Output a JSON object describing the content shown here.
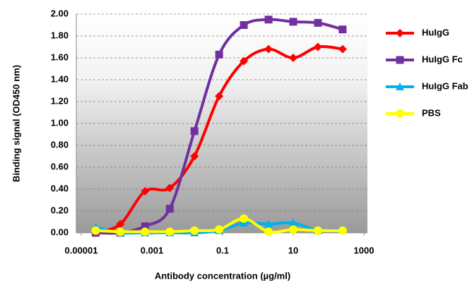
{
  "chart_data": {
    "type": "line",
    "x_label": "Antibody concentration (µg/ml)",
    "y_label": "Binding signal (OD450 nm)",
    "x": [
      2.56e-05,
      0.000128,
      0.00064,
      0.0032,
      0.016,
      0.08,
      0.4,
      2,
      10,
      50,
      250
    ],
    "series": [
      {
        "name": "HuIgG",
        "color": "#ff0000",
        "marker": "diamond",
        "values": [
          0.0,
          0.08,
          0.38,
          0.41,
          0.7,
          1.25,
          1.57,
          1.68,
          1.6,
          1.7,
          1.68
        ]
      },
      {
        "name": "HuIgG Fc",
        "color": "#7030a0",
        "marker": "square",
        "values": [
          0.0,
          0.0,
          0.06,
          0.22,
          0.93,
          1.63,
          1.9,
          1.95,
          1.93,
          1.92,
          1.86
        ]
      },
      {
        "name": "HuIgG Fab",
        "color": "#00b0f0",
        "marker": "triangle",
        "values": [
          0.05,
          0.0,
          0.0,
          0.0,
          0.0,
          0.02,
          0.09,
          0.08,
          0.09,
          0.02,
          0.03
        ]
      },
      {
        "name": "PBS",
        "color": "#ffff00",
        "marker": "circle",
        "values": [
          0.02,
          0.01,
          0.01,
          0.01,
          0.02,
          0.03,
          0.13,
          0.01,
          0.03,
          0.02,
          0.02
        ]
      }
    ],
    "xscale": "log",
    "xlim": [
      1e-05,
      1000
    ],
    "xticks": [
      {
        "value": 1e-05,
        "label": "0.00001"
      },
      0.001,
      0.1,
      10,
      1000
    ],
    "ylim": [
      0,
      2
    ],
    "yticks": [
      {
        "value": 0,
        "label": "0.00"
      },
      {
        "value": 0.2,
        "label": "0.20"
      },
      {
        "value": 0.4,
        "label": "0.40"
      },
      {
        "value": 0.6,
        "label": "0.60"
      },
      {
        "value": 0.8,
        "label": "0.80"
      },
      {
        "value": 1,
        "label": "1.00"
      },
      {
        "value": 1.2,
        "label": "1.20"
      },
      {
        "value": 1.4,
        "label": "1.40"
      },
      {
        "value": 1.6,
        "label": "1.60"
      },
      {
        "value": 1.8,
        "label": "1.80"
      },
      {
        "value": 2,
        "label": "2.00"
      }
    ],
    "grid": true,
    "legend": "right"
  }
}
